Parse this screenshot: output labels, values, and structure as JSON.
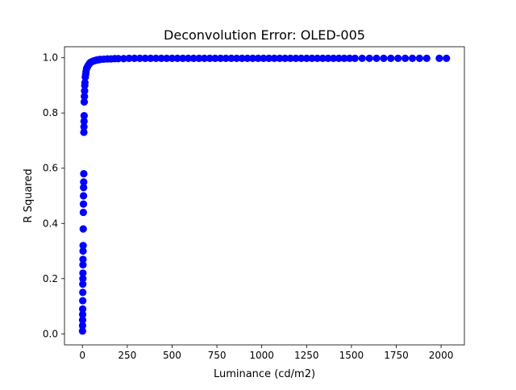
{
  "chart_data": {
    "type": "scatter",
    "title": "Deconvolution Error: OLED-005",
    "xlabel": "Luminance (cd/m2)",
    "ylabel": "R Squared",
    "xlim": [
      -100,
      2130
    ],
    "ylim": [
      -0.04,
      1.04
    ],
    "xticks": [
      0,
      250,
      500,
      750,
      1000,
      1250,
      1500,
      1750,
      2000
    ],
    "yticks": [
      0.0,
      0.2,
      0.4,
      0.6,
      0.8,
      1.0
    ],
    "grid": false,
    "marker_color": "#0000ff",
    "series": [
      {
        "points": [
          [
            0.5,
            0.01
          ],
          [
            0.8,
            0.03
          ],
          [
            1.0,
            0.05
          ],
          [
            1.2,
            0.07
          ],
          [
            1.5,
            0.09
          ],
          [
            1.8,
            0.12
          ],
          [
            2.0,
            0.15
          ],
          [
            2.2,
            0.18
          ],
          [
            2.5,
            0.2
          ],
          [
            2.8,
            0.22
          ],
          [
            3.0,
            0.25
          ],
          [
            3.2,
            0.27
          ],
          [
            3.5,
            0.3
          ],
          [
            4.0,
            0.32
          ],
          [
            4.5,
            0.38
          ],
          [
            5.0,
            0.44
          ],
          [
            5.5,
            0.47
          ],
          [
            6.0,
            0.5
          ],
          [
            6.5,
            0.53
          ],
          [
            7.0,
            0.55
          ],
          [
            7.5,
            0.58
          ],
          [
            8.0,
            0.73
          ],
          [
            8.5,
            0.75
          ],
          [
            9.0,
            0.77
          ],
          [
            9.5,
            0.79
          ],
          [
            10,
            0.84
          ],
          [
            11,
            0.86
          ],
          [
            12,
            0.88
          ],
          [
            13,
            0.9
          ],
          [
            14,
            0.91
          ],
          [
            16,
            0.93
          ],
          [
            18,
            0.94
          ],
          [
            20,
            0.95
          ],
          [
            23,
            0.96
          ],
          [
            26,
            0.965
          ],
          [
            30,
            0.97
          ],
          [
            35,
            0.975
          ],
          [
            40,
            0.98
          ],
          [
            45,
            0.983
          ],
          [
            50,
            0.985
          ],
          [
            60,
            0.988
          ],
          [
            70,
            0.99
          ],
          [
            80,
            0.992
          ],
          [
            90,
            0.993
          ],
          [
            100,
            0.994
          ],
          [
            120,
            0.995
          ],
          [
            140,
            0.996
          ],
          [
            160,
            0.996
          ],
          [
            180,
            0.997
          ],
          [
            200,
            0.997
          ],
          [
            230,
            0.997
          ],
          [
            260,
            0.998
          ],
          [
            290,
            0.998
          ],
          [
            320,
            0.998
          ],
          [
            350,
            0.998
          ],
          [
            380,
            0.998
          ],
          [
            410,
            0.998
          ],
          [
            440,
            0.998
          ],
          [
            470,
            0.998
          ],
          [
            500,
            0.998
          ],
          [
            530,
            0.998
          ],
          [
            560,
            0.998
          ],
          [
            590,
            0.998
          ],
          [
            620,
            0.998
          ],
          [
            650,
            0.998
          ],
          [
            680,
            0.998
          ],
          [
            710,
            0.998
          ],
          [
            740,
            0.998
          ],
          [
            770,
            0.998
          ],
          [
            800,
            0.998
          ],
          [
            830,
            0.998
          ],
          [
            860,
            0.998
          ],
          [
            890,
            0.998
          ],
          [
            920,
            0.998
          ],
          [
            950,
            0.998
          ],
          [
            980,
            0.998
          ],
          [
            1010,
            0.998
          ],
          [
            1040,
            0.998
          ],
          [
            1070,
            0.998
          ],
          [
            1100,
            0.998
          ],
          [
            1130,
            0.998
          ],
          [
            1160,
            0.998
          ],
          [
            1190,
            0.998
          ],
          [
            1220,
            0.998
          ],
          [
            1250,
            0.998
          ],
          [
            1280,
            0.998
          ],
          [
            1310,
            0.998
          ],
          [
            1340,
            0.998
          ],
          [
            1370,
            0.998
          ],
          [
            1400,
            0.998
          ],
          [
            1430,
            0.998
          ],
          [
            1460,
            0.998
          ],
          [
            1490,
            0.998
          ],
          [
            1520,
            0.998
          ],
          [
            1560,
            0.998
          ],
          [
            1600,
            0.998
          ],
          [
            1640,
            0.998
          ],
          [
            1680,
            0.998
          ],
          [
            1720,
            0.998
          ],
          [
            1760,
            0.998
          ],
          [
            1800,
            0.998
          ],
          [
            1840,
            0.998
          ],
          [
            1880,
            0.998
          ],
          [
            1920,
            0.998
          ],
          [
            1990,
            0.998
          ],
          [
            2030,
            0.998
          ]
        ]
      }
    ]
  }
}
